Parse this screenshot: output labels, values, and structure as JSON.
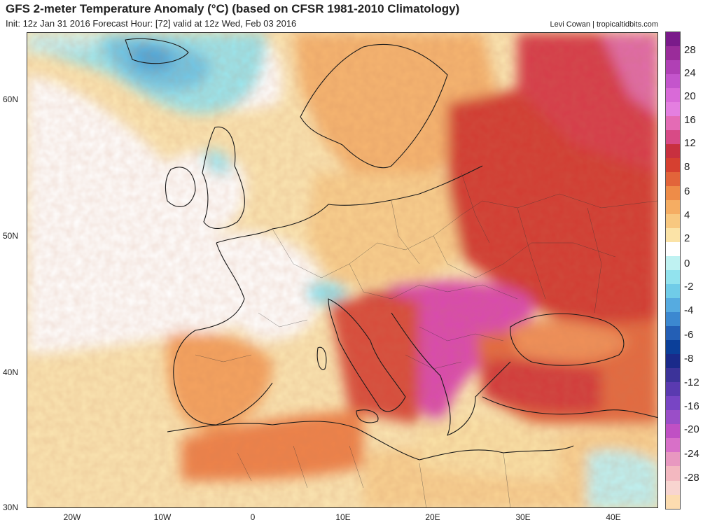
{
  "header": {
    "title": "GFS 2-meter Temperature Anomaly (°C) (based on CFSR 1981-2010 Climatology)",
    "subtitle": "Init: 12z Jan 31 2016   Forecast Hour: [72]   valid at 12z Wed, Feb 03 2016",
    "credit": "Levi Cowan | tropicaltidbits.com"
  },
  "map": {
    "lat_labels": [
      "60N",
      "50N",
      "40N",
      "30N"
    ],
    "lon_labels": [
      "20W",
      "10W",
      "0",
      "10E",
      "20E",
      "30E",
      "40E"
    ]
  },
  "colorbar": {
    "labels": [
      "28",
      "24",
      "20",
      "16",
      "12",
      "8",
      "6",
      "4",
      "2",
      "0",
      "-2",
      "-4",
      "-6",
      "-8",
      "-12",
      "-16",
      "-20",
      "-24",
      "-28"
    ],
    "colors": [
      "#7a1a8a",
      "#9a2c9a",
      "#b040b5",
      "#c455cc",
      "#d96ad8",
      "#e47fe0",
      "#e46bb5",
      "#d84a86",
      "#c8303f",
      "#d64030",
      "#e2643a",
      "#ee8c48",
      "#f5ad63",
      "#f8c880",
      "#fbe3a7",
      "#ffffff",
      "#bff2f2",
      "#92e3ee",
      "#70cce8",
      "#56abe0",
      "#3c88d0",
      "#245fb5",
      "#0b3f99",
      "#1a2a8a",
      "#3c3399",
      "#5a3ab0",
      "#7845c4",
      "#9a4ec8",
      "#c050c4",
      "#d870c8",
      "#e898c0",
      "#f3b8c0",
      "#f8d5d0",
      "#fcdcb0"
    ]
  }
}
